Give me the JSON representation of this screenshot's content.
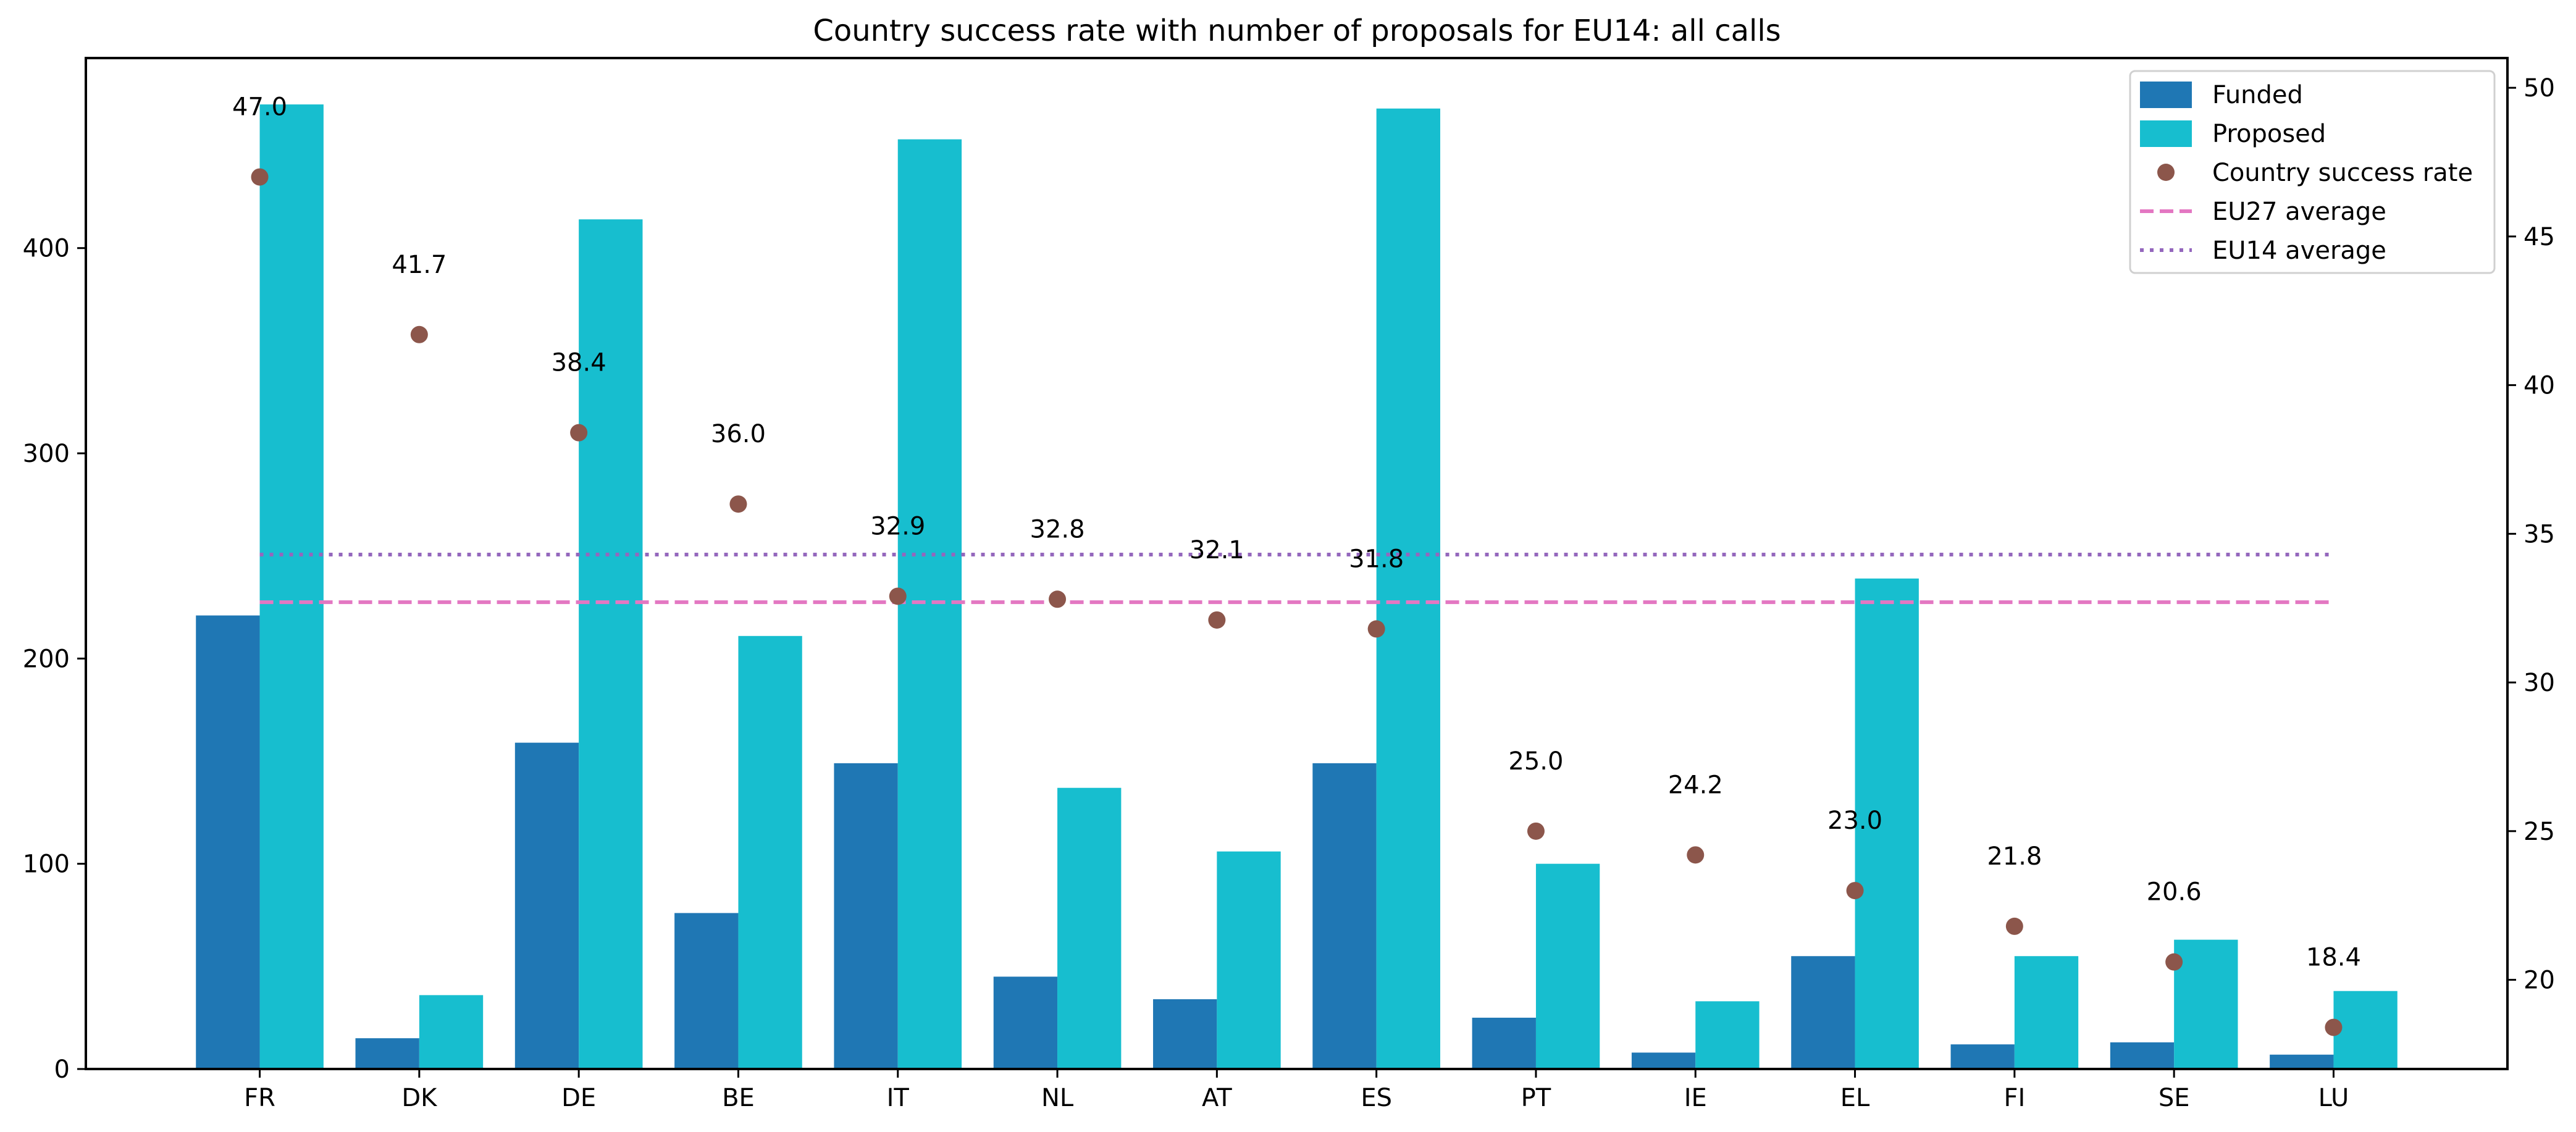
{
  "chart_data": {
    "type": "bar",
    "title": "Country success rate with number of proposals for EU14: all calls",
    "xlabel": "",
    "ylabel": "",
    "y2label": "",
    "categories": [
      "FR",
      "DK",
      "DE",
      "BE",
      "IT",
      "NL",
      "AT",
      "ES",
      "PT",
      "IE",
      "EL",
      "FI",
      "SE",
      "LU"
    ],
    "series": [
      {
        "name": "Funded",
        "type": "bar",
        "axis": "left",
        "color": "#1f77b4",
        "values": [
          221,
          15,
          159,
          76,
          149,
          45,
          34,
          149,
          25,
          8,
          55,
          12,
          13,
          7
        ]
      },
      {
        "name": "Proposed",
        "type": "bar",
        "axis": "left",
        "color": "#17becf",
        "values": [
          470,
          36,
          414,
          211,
          453,
          137,
          106,
          468,
          100,
          33,
          239,
          55,
          63,
          38
        ]
      },
      {
        "name": "Country success rate",
        "type": "scatter",
        "axis": "right",
        "color": "#8c564b",
        "values": [
          47.0,
          41.7,
          38.4,
          36.0,
          32.9,
          32.8,
          32.1,
          31.8,
          25.0,
          24.2,
          23.0,
          21.8,
          20.6,
          18.4
        ],
        "labels": [
          "47.0",
          "41.7",
          "38.4",
          "36.0",
          "32.9",
          "32.8",
          "32.1",
          "31.8",
          "25.0",
          "24.2",
          "23.0",
          "21.8",
          "20.6",
          "18.4"
        ]
      },
      {
        "name": "EU27 average",
        "type": "hline",
        "axis": "right",
        "color": "#e377c2",
        "style": "dashed",
        "value": 32.7
      },
      {
        "name": "EU14 average",
        "type": "hline",
        "axis": "right",
        "color": "#9467bd",
        "style": "dotted",
        "value": 34.3
      }
    ],
    "ylim": [
      0,
      492.6
    ],
    "y2lim": [
      17.0,
      51.0
    ],
    "xlim": [
      -1.09,
      14.09
    ],
    "yticks": [
      0,
      100,
      200,
      300,
      400
    ],
    "ytick_labels": [
      "0",
      "100",
      "200",
      "300",
      "400"
    ],
    "y2ticks": [
      20,
      25,
      30,
      35,
      40,
      45,
      50
    ],
    "y2tick_labels": [
      "20",
      "25",
      "30",
      "35",
      "40",
      "45",
      "50"
    ],
    "grid": false,
    "legend": {
      "position": "top-right",
      "entries": [
        "Funded",
        "Proposed",
        "Country success rate",
        "EU27 average",
        "EU14 average"
      ]
    }
  }
}
